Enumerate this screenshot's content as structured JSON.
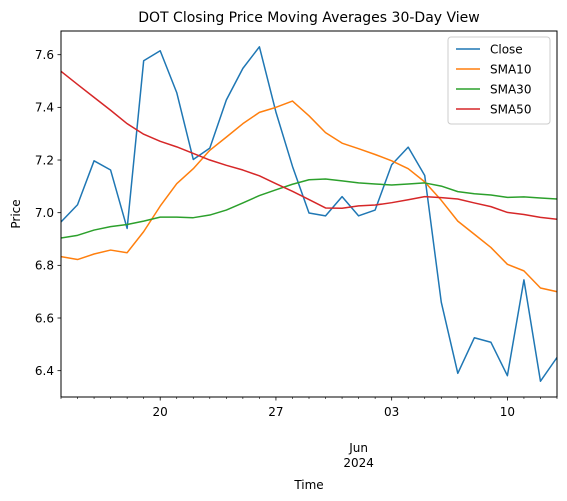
{
  "chart_data": {
    "type": "line",
    "title": "DOT Closing Price Moving Averages 30-Day View",
    "xlabel": "Time",
    "ylabel": "Price",
    "x": [
      "2024-05-14",
      "2024-05-15",
      "2024-05-16",
      "2024-05-17",
      "2024-05-18",
      "2024-05-19",
      "2024-05-20",
      "2024-05-21",
      "2024-05-22",
      "2024-05-23",
      "2024-05-24",
      "2024-05-25",
      "2024-05-26",
      "2024-05-27",
      "2024-05-28",
      "2024-05-29",
      "2024-05-30",
      "2024-05-31",
      "2024-06-01",
      "2024-06-02",
      "2024-06-03",
      "2024-06-04",
      "2024-06-05",
      "2024-06-06",
      "2024-06-07",
      "2024-06-08",
      "2024-06-09",
      "2024-06-10",
      "2024-06-11",
      "2024-06-12",
      "2024-06-13"
    ],
    "xlim": [
      "2024-05-14",
      "2024-06-13"
    ],
    "ylim": [
      6.3,
      7.69
    ],
    "y_ticks": [
      6.4,
      6.6,
      6.8,
      7.0,
      7.2,
      7.4,
      7.6
    ],
    "y_tick_labels": [
      "6.4",
      "6.6",
      "6.8",
      "7.0",
      "7.2",
      "7.4",
      "7.6"
    ],
    "x_major_ticks": [
      {
        "date": "2024-05-20",
        "label": "20"
      },
      {
        "date": "2024-05-27",
        "label": "27"
      },
      {
        "date": "2024-06-03",
        "label": "03"
      },
      {
        "date": "2024-06-10",
        "label": "10"
      }
    ],
    "x_minor_ticks": [
      "2024-05-14",
      "2024-05-15",
      "2024-05-16",
      "2024-05-17",
      "2024-05-18",
      "2024-05-19",
      "2024-05-21",
      "2024-05-22",
      "2024-05-23",
      "2024-05-24",
      "2024-05-25",
      "2024-05-26",
      "2024-05-28",
      "2024-05-29",
      "2024-05-30",
      "2024-05-31",
      "2024-06-01",
      "2024-06-02",
      "2024-06-04",
      "2024-06-05",
      "2024-06-06",
      "2024-06-07",
      "2024-06-08",
      "2024-06-09",
      "2024-06-11",
      "2024-06-12",
      "2024-06-13"
    ],
    "x_secondary_label": {
      "date": "2024-06-01",
      "line1": "Jun",
      "line2": "2024"
    },
    "grid": false,
    "legend_position": "top-right",
    "series": [
      {
        "name": "Close",
        "color": "#1f77b4",
        "values": [
          6.965,
          7.03,
          7.197,
          7.162,
          6.94,
          7.577,
          7.615,
          7.456,
          7.202,
          7.245,
          7.428,
          7.548,
          7.63,
          7.382,
          7.176,
          6.999,
          6.988,
          7.061,
          6.988,
          7.01,
          7.182,
          7.249,
          7.141,
          6.66,
          6.39,
          6.525,
          6.508,
          6.381,
          6.745,
          6.36,
          6.45
        ]
      },
      {
        "name": "SMA10",
        "color": "#ff7f0e",
        "values": [
          6.833,
          6.822,
          6.843,
          6.858,
          6.848,
          6.928,
          7.025,
          7.11,
          7.167,
          7.237,
          7.287,
          7.338,
          7.381,
          7.4,
          7.424,
          7.368,
          7.304,
          7.264,
          7.243,
          7.221,
          7.197,
          7.167,
          7.117,
          7.047,
          6.968,
          6.918,
          6.868,
          6.804,
          6.779,
          6.714,
          6.7
        ]
      },
      {
        "name": "SMA30",
        "color": "#2ca02c",
        "values": [
          6.904,
          6.914,
          6.934,
          6.947,
          6.955,
          6.968,
          6.983,
          6.983,
          6.981,
          6.991,
          7.01,
          7.037,
          7.065,
          7.087,
          7.108,
          7.125,
          7.128,
          7.121,
          7.113,
          7.109,
          7.105,
          7.109,
          7.113,
          7.101,
          7.08,
          7.072,
          7.067,
          7.058,
          7.06,
          7.056,
          7.052
        ]
      },
      {
        "name": "SMA50",
        "color": "#d62728",
        "values": [
          7.537,
          7.487,
          7.438,
          7.389,
          7.338,
          7.298,
          7.271,
          7.25,
          7.225,
          7.2,
          7.18,
          7.162,
          7.14,
          7.11,
          7.081,
          7.05,
          7.018,
          7.017,
          7.026,
          7.029,
          7.038,
          7.049,
          7.061,
          7.057,
          7.052,
          7.037,
          7.023,
          7.001,
          6.993,
          6.982,
          6.975
        ]
      }
    ]
  }
}
